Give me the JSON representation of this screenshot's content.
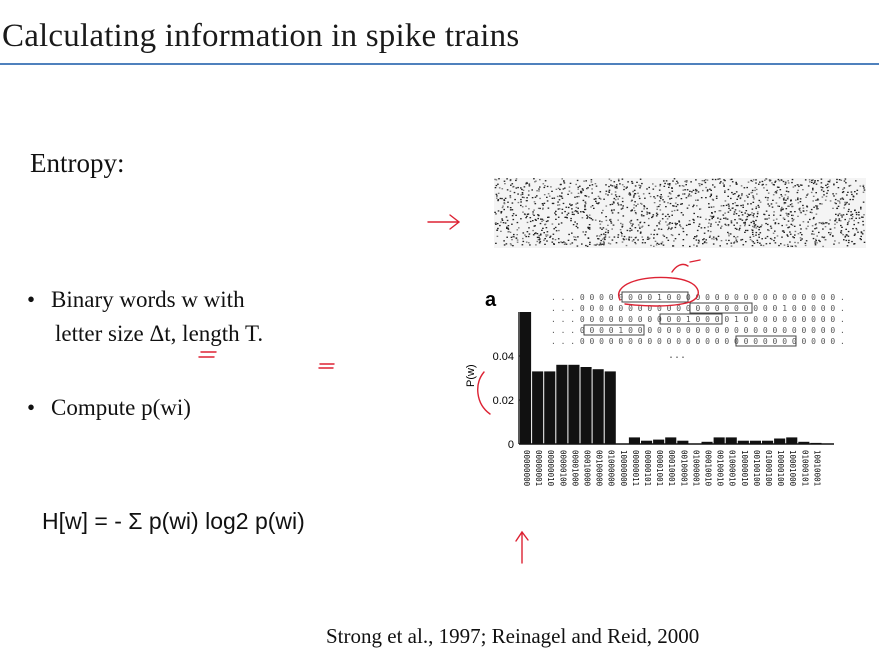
{
  "slide": {
    "title": "Calculating information in spike trains",
    "heading": "Entropy:",
    "bullet_marker": "•",
    "bullet1_line1": "Binary words w with",
    "bullet1_line2": "letter size Δt, length T.",
    "bullet2": "Compute  p(wi)",
    "formula": "H[w] = - Σ p(wi) log2 p(wi)",
    "citation": "Strong et al., 1997; Reinagel and Reid, 2000"
  },
  "figure": {
    "panel_label": "a",
    "ellipsis": "...",
    "word_rows": [
      ". . . 0 0 0 0 0 0 0 0 1 0 0 0 0 0 0 0 0 0 0 0 0 0 0 0 0 0 0 . . .",
      ". . . 0 0 0 0 0 0 0 0 0 0 0 0 0 0 0 0 0 0 0 0 0 1 0 0 0 0 0 . . .",
      ". . . 0 0 0 0 0 0 0 0 0 0 0 1 0 0 0 0 1 0 0 0 0 0 0 0 0 0 0 . . .",
      ". . . 0 0 0 0 1 0 0 0 0 0 0 0 0 0 0 0 0 0 0 0 0 0 0 0 0 0 0 . . .",
      ". . . 0 0 0 0 0 0 0 0 0 0 0 0 0 0 0 0 0 0 0 0 0 0 0 0 0 0 0 . . ."
    ]
  },
  "chart_data": {
    "type": "bar",
    "ylabel": "P(w)",
    "yticks": [
      "0",
      "0.02",
      "0.04"
    ],
    "ylim": [
      0,
      0.06
    ],
    "categories": [
      "00000000",
      "00000001",
      "00000010",
      "00000100",
      "00001000",
      "00010000",
      "00100000",
      "01000000",
      "10000000",
      "00000011",
      "00000101",
      "00001001",
      "00010001",
      "00100001",
      "01000001",
      "00010010",
      "00100010",
      "01000010",
      "10000010",
      "00100100",
      "01000100",
      "10000100",
      "10001000",
      "01000101",
      "10010001"
    ],
    "values": [
      0.06,
      0.033,
      0.033,
      0.036,
      0.036,
      0.035,
      0.034,
      0.033,
      0.0,
      0.003,
      0.0015,
      0.002,
      0.003,
      0.0015,
      0.0,
      0.001,
      0.003,
      0.003,
      0.0015,
      0.0015,
      0.0015,
      0.0025,
      0.003,
      0.001,
      0.0005
    ],
    "bar_color": "#111111",
    "grid": false
  }
}
